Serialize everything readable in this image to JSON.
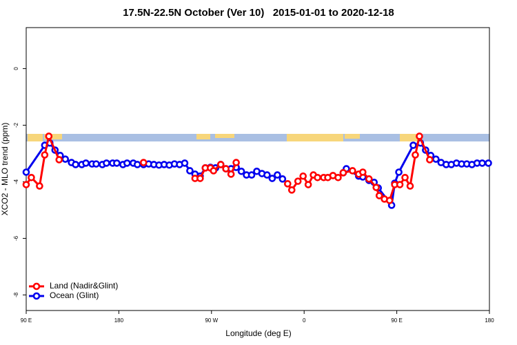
{
  "chart_data": {
    "type": "line",
    "title": "17.5N-22.5N October (Ver 10)   2015-01-01 to 2020-12-18",
    "x_label": "Longitude (deg E)",
    "y_label": "XCO2 - MLO trend (ppm)",
    "xlim": [
      90,
      540
    ],
    "ylim": [
      -8.55,
      1.45
    ],
    "xticks": [
      {
        "value": 90,
        "label": "90 E"
      },
      180,
      {
        "value": 270,
        "label": "90 W"
      },
      {
        "value": 360,
        "label": "0"
      },
      {
        "value": 450,
        "label": "90 E"
      },
      {
        "value": 540,
        "label": "180"
      }
    ],
    "yticks": [
      0,
      -2,
      -4,
      -6,
      -8
    ],
    "legend": "bottom-left",
    "series": [
      {
        "name": "Land (Nadir&Glint)",
        "color": "#ff0000",
        "x": [
          90,
          95,
          103,
          108,
          112,
          122,
          150,
          204,
          240,
          254,
          259,
          264,
          269,
          272,
          279,
          284,
          289,
          294,
          350,
          344,
          348,
          354,
          359,
          364,
          369,
          373,
          379,
          383,
          388,
          393,
          398,
          407,
          413,
          417,
          423,
          430,
          433,
          438,
          443,
          448,
          453,
          458,
          463,
          468,
          472,
          482
        ],
        "values": [
          -4.1,
          -3.85,
          -4.15,
          -3.05,
          -2.39,
          -3.22,
          null,
          -3.32,
          null,
          -3.88,
          -3.88,
          -3.51,
          -3.51,
          -3.61,
          -3.39,
          -3.54,
          -3.73,
          -3.32,
          null,
          -4.07,
          -4.29,
          -3.98,
          -3.8,
          -4.1,
          -3.76,
          -3.85,
          -3.85,
          -3.85,
          -3.78,
          -3.85,
          -3.68,
          -3.61,
          -3.73,
          -3.66,
          -3.9,
          -4.2,
          -4.49,
          -4.61,
          -4.66,
          -4.1,
          -4.1,
          -3.85,
          -4.15,
          -3.05,
          -2.39,
          -3.22
        ]
      },
      {
        "name": "Ocean (Glint)",
        "color": "#0000ee",
        "x": [
          90,
          108,
          113,
          118,
          123,
          128,
          134,
          138,
          144,
          148,
          154,
          158,
          164,
          168,
          174,
          178,
          184,
          188,
          194,
          198,
          204,
          209,
          214,
          219,
          224,
          229,
          234,
          239,
          244,
          249,
          254,
          259,
          264,
          269,
          274,
          279,
          284,
          289,
          294,
          299,
          304,
          309,
          314,
          319,
          324,
          329,
          334,
          339,
          374,
          398,
          401,
          413,
          417,
          423,
          428,
          432,
          445,
          448,
          452,
          466,
          473,
          478,
          483,
          488,
          493,
          498,
          503,
          508,
          513,
          518,
          523,
          528,
          533,
          539
        ],
        "values": [
          -3.66,
          -2.71,
          -2.63,
          -2.88,
          -3.07,
          -3.2,
          -3.32,
          -3.39,
          -3.39,
          -3.34,
          -3.37,
          -3.37,
          -3.39,
          -3.34,
          -3.34,
          -3.34,
          -3.39,
          -3.34,
          -3.34,
          -3.39,
          -3.39,
          -3.37,
          -3.39,
          -3.41,
          -3.39,
          -3.41,
          -3.37,
          -3.39,
          -3.34,
          -3.61,
          -3.73,
          -3.8,
          -3.51,
          -3.49,
          -3.51,
          -3.39,
          -3.54,
          -3.54,
          -3.49,
          -3.63,
          -3.76,
          -3.76,
          -3.63,
          -3.71,
          -3.76,
          -3.88,
          -3.76,
          -3.9,
          null,
          -3.68,
          -3.54,
          -3.8,
          -3.83,
          -3.95,
          -4.02,
          -4.22,
          -4.83,
          -4.05,
          -3.66,
          -2.71,
          -2.63,
          -2.88,
          -3.07,
          -3.2,
          -3.32,
          -3.39,
          -3.39,
          -3.34,
          -3.37,
          -3.37,
          -3.39,
          -3.34,
          -3.34,
          -3.34
        ]
      }
    ]
  }
}
